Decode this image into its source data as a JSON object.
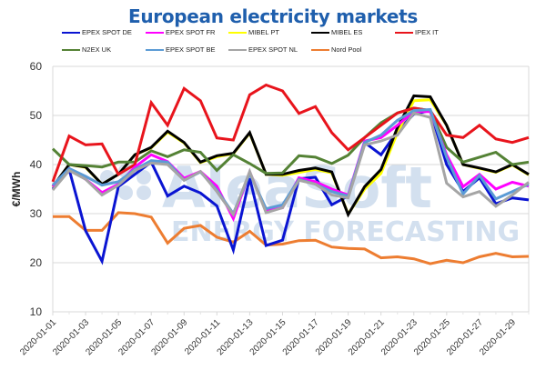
{
  "chart_data": {
    "type": "line",
    "title": "European electricity markets",
    "xlabel": "",
    "ylabel": "€/MWh",
    "ylim": [
      10,
      60
    ],
    "yticks": [
      "10",
      "20",
      "30",
      "40",
      "50",
      "60"
    ],
    "ytick_values": [
      10,
      20,
      30,
      40,
      50,
      60
    ],
    "grid": true,
    "legend_position": "top",
    "watermark": {
      "line1": "AleaSoft",
      "line2": "ENERGY FORECASTING"
    },
    "x": [
      "2020-01-01",
      "2020-01-02",
      "2020-01-03",
      "2020-01-04",
      "2020-01-05",
      "2020-01-06",
      "2020-01-07",
      "2020-01-08",
      "2020-01-09",
      "2020-01-10",
      "2020-01-11",
      "2020-01-12",
      "2020-01-13",
      "2020-01-14",
      "2020-01-15",
      "2020-01-16",
      "2020-01-17",
      "2020-01-18",
      "2020-01-19",
      "2020-01-20",
      "2020-01-21",
      "2020-01-22",
      "2020-01-23",
      "2020-01-24",
      "2020-01-25",
      "2020-01-26",
      "2020-01-27",
      "2020-01-28",
      "2020-01-29",
      "2020-01-30"
    ],
    "xtick_labels": [
      "2020-01-01",
      "2020-01-03",
      "2020-01-05",
      "2020-01-07",
      "2020-01-09",
      "2020-01-11",
      "2020-01-13",
      "2020-01-15",
      "2020-01-17",
      "2020-01-19",
      "2020-01-21",
      "2020-01-23",
      "2020-01-25",
      "2020-01-27",
      "2020-01-29"
    ],
    "series": [
      {
        "name": "EPEX SPOT DE",
        "color": "#0a14d2",
        "values": [
          35.0,
          39.0,
          26.5,
          20.3,
          35.5,
          38.0,
          40.5,
          33.6,
          35.6,
          34.2,
          31.6,
          22.6,
          37.2,
          23.5,
          24.6,
          37.1,
          37.4,
          31.8,
          33.6,
          44.5,
          42.0,
          46.8,
          50.3,
          51.0,
          40.0,
          34.5,
          37.3,
          32.0,
          33.2,
          32.8
        ]
      },
      {
        "name": "EPEX SPOT FR",
        "color": "#ff00ff",
        "values": [
          35.5,
          39.2,
          37.0,
          34.3,
          36.0,
          39.5,
          42.0,
          40.6,
          37.2,
          38.6,
          35.6,
          29.0,
          38.5,
          30.5,
          31.2,
          37.3,
          36.5,
          35.0,
          33.8,
          44.8,
          45.5,
          48.0,
          50.8,
          50.8,
          42.0,
          35.5,
          38.0,
          35.0,
          36.4,
          35.6
        ]
      },
      {
        "name": "MIBEL PT",
        "color": "#ffff00",
        "values": [
          35.4,
          40.0,
          39.4,
          36.0,
          38.0,
          42.0,
          43.4,
          46.6,
          44.4,
          40.4,
          41.6,
          42.2,
          46.4,
          38.0,
          37.8,
          38.4,
          39.0,
          38.3,
          29.9,
          35.0,
          38.2,
          46.5,
          53.0,
          53.2,
          48.0,
          40.0,
          39.2,
          38.4,
          39.9,
          37.9
        ]
      },
      {
        "name": "MIBEL ES",
        "color": "#000000",
        "values": [
          35.5,
          40.0,
          39.5,
          36.0,
          38.0,
          42.0,
          43.5,
          46.8,
          44.5,
          40.5,
          41.8,
          42.3,
          46.5,
          38.0,
          38.0,
          38.8,
          39.3,
          38.5,
          29.8,
          35.5,
          39.0,
          47.5,
          54.0,
          53.8,
          48.0,
          40.0,
          39.3,
          38.5,
          40.0,
          38.0
        ]
      },
      {
        "name": "IPEX IT",
        "color": "#e8141c",
        "values": [
          36.5,
          45.8,
          44.0,
          44.2,
          38.0,
          40.0,
          52.6,
          48.0,
          55.5,
          53.0,
          45.4,
          45.0,
          54.2,
          56.2,
          55.0,
          50.4,
          51.8,
          46.5,
          43.0,
          45.5,
          48.0,
          50.5,
          51.5,
          51.0,
          46.0,
          45.5,
          48.0,
          45.2,
          44.5,
          45.5
        ]
      },
      {
        "name": "N2EX UK",
        "color": "#548235",
        "values": [
          43.2,
          40.0,
          39.8,
          39.5,
          40.5,
          40.5,
          42.8,
          41.6,
          43.0,
          42.5,
          38.8,
          42.0,
          40.2,
          38.2,
          38.3,
          41.8,
          41.5,
          40.2,
          41.9,
          45.5,
          48.5,
          50.5,
          51.5,
          51.0,
          43.5,
          40.5,
          41.5,
          42.5,
          40.0,
          40.5
        ]
      },
      {
        "name": "EPEX SPOT BE",
        "color": "#5b9bd5",
        "values": [
          35.8,
          39.2,
          37.6,
          35.8,
          36.5,
          39.0,
          40.8,
          40.5,
          36.8,
          38.5,
          34.8,
          30.0,
          38.2,
          31.0,
          31.8,
          37.0,
          36.0,
          34.5,
          33.6,
          44.5,
          46.0,
          49.0,
          51.0,
          51.2,
          41.5,
          34.0,
          37.8,
          33.0,
          34.5,
          36.0
        ]
      },
      {
        "name": "EPEX SPOT NL",
        "color": "#a5a5a5",
        "values": [
          34.8,
          38.8,
          37.0,
          33.8,
          35.8,
          38.8,
          40.3,
          40.0,
          36.8,
          38.6,
          34.5,
          29.8,
          38.6,
          30.2,
          31.2,
          36.8,
          36.0,
          33.8,
          33.2,
          44.0,
          44.8,
          46.0,
          50.5,
          49.6,
          36.2,
          33.4,
          34.5,
          31.5,
          33.8,
          36.4
        ]
      },
      {
        "name": "Nord Pool",
        "color": "#ed7d31",
        "values": [
          29.4,
          29.4,
          26.6,
          26.6,
          30.2,
          30.0,
          29.3,
          24.0,
          27.0,
          27.6,
          25.2,
          24.2,
          26.4,
          23.6,
          23.8,
          24.5,
          24.6,
          23.2,
          22.9,
          22.8,
          21.0,
          21.2,
          20.8,
          19.8,
          20.5,
          20.0,
          21.2,
          21.9,
          21.2,
          21.3
        ]
      }
    ]
  }
}
